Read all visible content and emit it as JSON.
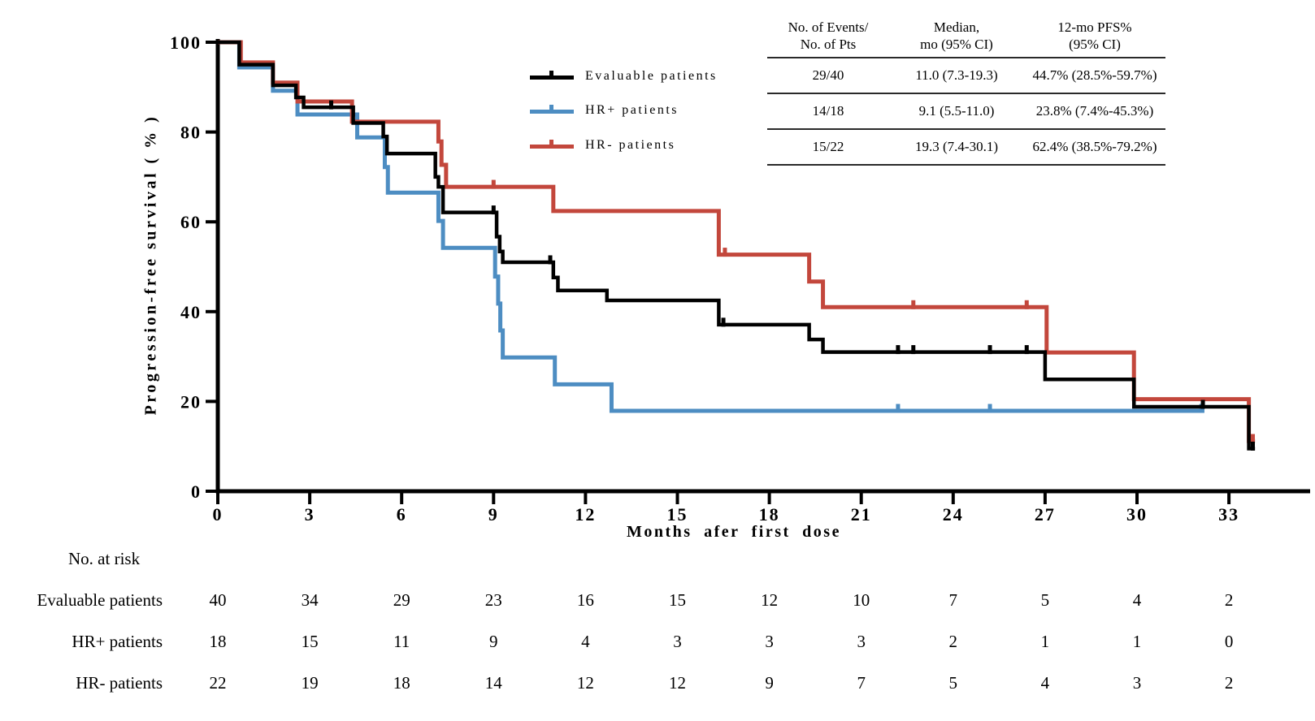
{
  "axes": {
    "y_title": "Progression-free survival ( % )",
    "x_title": "Months afer first dose",
    "y_ticks": [
      0,
      20,
      40,
      60,
      80,
      100
    ],
    "x_ticks": [
      0,
      3,
      6,
      9,
      12,
      15,
      18,
      21,
      24,
      27,
      30,
      33
    ]
  },
  "legend": {
    "items": [
      {
        "label": "Evaluable patients",
        "color": "#000000"
      },
      {
        "label": "HR+ patients",
        "color": "#4D8DC2"
      },
      {
        "label": "HR- patients",
        "color": "#C3473C"
      }
    ]
  },
  "summary_table": {
    "headers": [
      [
        "No. of Events/",
        "No. of Pts"
      ],
      [
        "Median,",
        "mo (95% CI)"
      ],
      [
        "12-mo PFS%",
        "(95% CI)"
      ]
    ],
    "rows": [
      [
        "29/40",
        "11.0 (7.3-19.3)",
        "44.7% (28.5%-59.7%)"
      ],
      [
        "14/18",
        "9.1 (5.5-11.0)",
        "23.8% (7.4%-45.3%)"
      ],
      [
        "15/22",
        "19.3 (7.4-30.1)",
        "62.4% (38.5%-79.2%)"
      ]
    ]
  },
  "risk_table": {
    "title": "No. at risk",
    "rows": [
      {
        "label": "Evaluable patients",
        "values": [
          40,
          34,
          29,
          23,
          16,
          15,
          12,
          10,
          7,
          5,
          4,
          2
        ]
      },
      {
        "label": "HR+ patients",
        "values": [
          18,
          15,
          11,
          9,
          4,
          3,
          3,
          3,
          2,
          1,
          1,
          0
        ]
      },
      {
        "label": "HR- patients",
        "values": [
          22,
          19,
          18,
          14,
          12,
          12,
          9,
          7,
          5,
          4,
          3,
          2
        ]
      }
    ]
  },
  "chart_data": {
    "type": "line",
    "subtype": "kaplan-meier-step",
    "title": "",
    "xlabel": "Months afer first dose",
    "ylabel": "Progression-free survival ( % )",
    "xlim": [
      0,
      35.5
    ],
    "ylim": [
      0,
      100
    ],
    "grid": false,
    "legend_position": "upper-right",
    "series": [
      {
        "name": "Evaluable patients",
        "color": "#000000",
        "n": 40,
        "events": 29,
        "median_months": "11.0 (7.3-19.3)",
        "pfs_12mo": "44.7% (28.5%-59.7%)",
        "steps": [
          [
            0,
            100
          ],
          [
            0.7,
            95.0
          ],
          [
            1.8,
            90.4
          ],
          [
            2.55,
            87.7
          ],
          [
            2.8,
            85.5
          ],
          [
            4.42,
            82.0
          ],
          [
            5.4,
            79.0
          ],
          [
            5.52,
            75.2
          ],
          [
            7.1,
            70.0
          ],
          [
            7.2,
            67.8
          ],
          [
            7.35,
            62.1
          ],
          [
            9.1,
            56.7
          ],
          [
            9.2,
            53.4
          ],
          [
            9.3,
            51.0
          ],
          [
            10.95,
            47.6
          ],
          [
            11.1,
            44.7
          ],
          [
            12.7,
            42.5
          ],
          [
            16.35,
            37.1
          ],
          [
            19.3,
            33.8
          ],
          [
            19.75,
            31.0
          ],
          [
            27.0,
            24.9
          ],
          [
            29.9,
            18.8
          ],
          [
            33.65,
            9.5
          ]
        ],
        "end": 33.85,
        "censors": [
          [
            3.7,
            85.5
          ],
          [
            9.0,
            62.1
          ],
          [
            10.85,
            51.0
          ],
          [
            16.5,
            37.1
          ],
          [
            22.2,
            31.0
          ],
          [
            22.7,
            31.0
          ],
          [
            25.2,
            31.0
          ],
          [
            26.4,
            31.0
          ],
          [
            32.15,
            18.8
          ],
          [
            33.78,
            9.5
          ]
        ]
      },
      {
        "name": "HR+ patients",
        "color": "#4D8DC2",
        "n": 18,
        "events": 14,
        "median_months": "9.1 (5.5-11.0)",
        "pfs_12mo": "23.8% (7.4%-45.3%)",
        "steps": [
          [
            0,
            100
          ],
          [
            0.7,
            94.4
          ],
          [
            1.8,
            89.2
          ],
          [
            2.6,
            83.9
          ],
          [
            4.55,
            78.8
          ],
          [
            5.45,
            72.2
          ],
          [
            5.55,
            66.5
          ],
          [
            7.2,
            60.2
          ],
          [
            7.35,
            54.2
          ],
          [
            9.05,
            47.8
          ],
          [
            9.15,
            41.8
          ],
          [
            9.22,
            35.8
          ],
          [
            9.3,
            29.8
          ],
          [
            11.0,
            23.8
          ],
          [
            12.85,
            17.9
          ]
        ],
        "end": 32.2,
        "censors": [
          [
            22.2,
            17.9
          ],
          [
            25.2,
            17.9
          ],
          [
            32.1,
            17.9
          ]
        ]
      },
      {
        "name": "HR- patients",
        "color": "#C3473C",
        "n": 22,
        "events": 15,
        "median_months": "19.3 (7.4-30.1)",
        "pfs_12mo": "62.4% (38.5%-79.2%)",
        "steps": [
          [
            0,
            100
          ],
          [
            0.75,
            95.5
          ],
          [
            1.8,
            91.0
          ],
          [
            2.6,
            86.8
          ],
          [
            4.38,
            82.3
          ],
          [
            7.2,
            77.9
          ],
          [
            7.3,
            72.7
          ],
          [
            7.45,
            67.8
          ],
          [
            10.95,
            62.4
          ],
          [
            16.35,
            52.7
          ],
          [
            19.3,
            46.7
          ],
          [
            19.75,
            41.0
          ],
          [
            27.05,
            30.9
          ],
          [
            29.9,
            20.5
          ],
          [
            33.65,
            11.2
          ]
        ],
        "end": 33.85,
        "censors": [
          [
            9.0,
            67.8
          ],
          [
            16.55,
            52.7
          ],
          [
            22.7,
            41.0
          ],
          [
            26.4,
            41.0
          ],
          [
            33.78,
            11.2
          ]
        ]
      }
    ]
  }
}
